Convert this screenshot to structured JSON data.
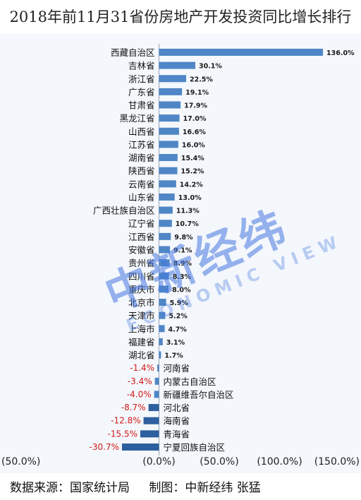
{
  "title": "2018年前11月31省份房地产开发投资同比增长排行",
  "source": {
    "data_source": "数据来源：国家统计局",
    "credit": "制图：中新经纬 张猛"
  },
  "watermark": {
    "cn": "中新经纬",
    "en": "ECONOMIC VIEW"
  },
  "colors": {
    "bar": "#4f86c6",
    "bar_dark": "#2e5f9e",
    "negative_label": "#d11a1a",
    "background": "#f4f7fb"
  },
  "chart_data": {
    "type": "bar",
    "orientation": "horizontal",
    "title": "2018年前11月31省份房地产开发投资同比增长排行",
    "categories": [
      "西藏自治区",
      "吉林省",
      "浙江省",
      "广东省",
      "甘肃省",
      "黑龙江省",
      "山西省",
      "江苏省",
      "湖南省",
      "陕西省",
      "云南省",
      "山东省",
      "广西壮族自治区",
      "辽宁省",
      "江西省",
      "安徽省",
      "贵州省",
      "四川省",
      "重庆市",
      "北京市",
      "天津市",
      "上海市",
      "福建省",
      "湖北省",
      "河南省",
      "内蒙古自治区",
      "新疆维吾尔自治区",
      "河北省",
      "海南省",
      "青海省",
      "宁夏回族自治区"
    ],
    "values": [
      136.0,
      30.1,
      22.5,
      19.1,
      17.9,
      17.0,
      16.6,
      16.0,
      15.4,
      15.2,
      14.2,
      13.0,
      11.3,
      10.7,
      9.8,
      9.1,
      8.9,
      8.3,
      8.0,
      5.9,
      5.2,
      4.7,
      3.1,
      1.7,
      -1.4,
      -3.4,
      -4.0,
      -8.7,
      -12.8,
      -15.5,
      -30.7
    ],
    "value_labels": [
      "136.0%",
      "30.1%",
      "22.5%",
      "19.1%",
      "17.9%",
      "17.0%",
      "16.6%",
      "16.0%",
      "15.4%",
      "15.2%",
      "14.2%",
      "13.0%",
      "11.3%",
      "10.7%",
      "9.8%",
      "9.1%",
      "8.9%",
      "8.3%",
      "8.0%",
      "5.9%",
      "5.2%",
      "4.7%",
      "3.1%",
      "1.7%",
      "-1.4%",
      "-3.4%",
      "-4.0%",
      "-8.7%",
      "-12.8%",
      "-15.5%",
      "-30.7%"
    ],
    "xlim": [
      -50,
      150
    ],
    "xticks": [
      -50,
      0,
      50,
      100,
      150
    ],
    "xtick_labels": [
      "(50.0%)",
      "(0.0%)",
      "(50.0%)",
      "(100.0%)",
      "(150.0%)"
    ],
    "xlabel": "",
    "ylabel": "",
    "grid": false,
    "legend": "none"
  }
}
